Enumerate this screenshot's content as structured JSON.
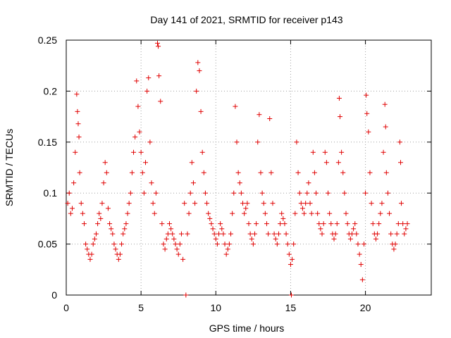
{
  "chart_data": {
    "type": "scatter",
    "title": "Day 141 of 2021, SRMTID for receiver p143",
    "xlabel": "GPS time / hours",
    "ylabel": "SRMTID / TECUs",
    "xlim": [
      0,
      24.4
    ],
    "ylim": [
      0,
      0.25
    ],
    "x_ticks": [
      0,
      5,
      10,
      15,
      20
    ],
    "x_tick_labels": [
      "0",
      "5",
      "10",
      "15",
      "20"
    ],
    "y_ticks": [
      0,
      0.05,
      0.1,
      0.15,
      0.2,
      0.25
    ],
    "y_tick_labels": [
      "0",
      "0.05",
      "0.1",
      "0.15",
      "0.2",
      "0.25"
    ],
    "grid": true,
    "marker": "+",
    "series": [
      {
        "name": "SRMTID",
        "color": "#e00000",
        "points": [
          [
            0.1,
            0.09
          ],
          [
            0.2,
            0.1
          ],
          [
            0.3,
            0.08
          ],
          [
            0.4,
            0.085
          ],
          [
            0.5,
            0.11
          ],
          [
            0.6,
            0.14
          ],
          [
            0.7,
            0.197
          ],
          [
            0.75,
            0.18
          ],
          [
            0.8,
            0.168
          ],
          [
            0.85,
            0.155
          ],
          [
            0.9,
            0.12
          ],
          [
            1.0,
            0.09
          ],
          [
            1.1,
            0.08
          ],
          [
            1.2,
            0.07
          ],
          [
            1.3,
            0.05
          ],
          [
            1.4,
            0.045
          ],
          [
            1.5,
            0.04
          ],
          [
            1.6,
            0.035
          ],
          [
            1.7,
            0.04
          ],
          [
            1.8,
            0.05
          ],
          [
            1.9,
            0.055
          ],
          [
            2.0,
            0.06
          ],
          [
            2.1,
            0.07
          ],
          [
            2.2,
            0.08
          ],
          [
            2.3,
            0.075
          ],
          [
            2.4,
            0.09
          ],
          [
            2.5,
            0.11
          ],
          [
            2.6,
            0.13
          ],
          [
            2.7,
            0.12
          ],
          [
            2.8,
            0.085
          ],
          [
            2.9,
            0.07
          ],
          [
            3.0,
            0.065
          ],
          [
            3.1,
            0.06
          ],
          [
            3.2,
            0.05
          ],
          [
            3.3,
            0.045
          ],
          [
            3.4,
            0.04
          ],
          [
            3.5,
            0.035
          ],
          [
            3.6,
            0.04
          ],
          [
            3.7,
            0.05
          ],
          [
            3.8,
            0.06
          ],
          [
            3.9,
            0.065
          ],
          [
            4.0,
            0.07
          ],
          [
            4.1,
            0.08
          ],
          [
            4.2,
            0.09
          ],
          [
            4.3,
            0.1
          ],
          [
            4.4,
            0.12
          ],
          [
            4.5,
            0.14
          ],
          [
            4.6,
            0.155
          ],
          [
            4.7,
            0.21
          ],
          [
            4.8,
            0.185
          ],
          [
            4.9,
            0.16
          ],
          [
            5.0,
            0.14
          ],
          [
            5.1,
            0.12
          ],
          [
            5.2,
            0.1
          ],
          [
            5.3,
            0.13
          ],
          [
            5.4,
            0.2
          ],
          [
            5.5,
            0.213
          ],
          [
            5.6,
            0.15
          ],
          [
            5.7,
            0.11
          ],
          [
            5.8,
            0.09
          ],
          [
            5.9,
            0.08
          ],
          [
            6.0,
            0.1
          ],
          [
            6.1,
            0.247
          ],
          [
            6.15,
            0.244
          ],
          [
            6.2,
            0.215
          ],
          [
            6.3,
            0.19
          ],
          [
            6.4,
            0.07
          ],
          [
            6.5,
            0.05
          ],
          [
            6.6,
            0.045
          ],
          [
            6.7,
            0.055
          ],
          [
            6.8,
            0.06
          ],
          [
            6.9,
            0.07
          ],
          [
            7.0,
            0.065
          ],
          [
            7.1,
            0.06
          ],
          [
            7.2,
            0.055
          ],
          [
            7.3,
            0.05
          ],
          [
            7.4,
            0.045
          ],
          [
            7.5,
            0.04
          ],
          [
            7.6,
            0.05
          ],
          [
            7.7,
            0.06
          ],
          [
            7.8,
            0.035
          ],
          [
            7.9,
            0.09
          ],
          [
            8.0,
            0.0
          ],
          [
            8.1,
            0.06
          ],
          [
            8.2,
            0.08
          ],
          [
            8.3,
            0.1
          ],
          [
            8.4,
            0.13
          ],
          [
            8.5,
            0.11
          ],
          [
            8.6,
            0.09
          ],
          [
            8.7,
            0.2
          ],
          [
            8.8,
            0.228
          ],
          [
            8.9,
            0.22
          ],
          [
            9.0,
            0.18
          ],
          [
            9.1,
            0.14
          ],
          [
            9.2,
            0.12
          ],
          [
            9.3,
            0.1
          ],
          [
            9.4,
            0.09
          ],
          [
            9.5,
            0.08
          ],
          [
            9.6,
            0.075
          ],
          [
            9.7,
            0.07
          ],
          [
            9.8,
            0.065
          ],
          [
            9.9,
            0.06
          ],
          [
            10.0,
            0.055
          ],
          [
            10.1,
            0.05
          ],
          [
            10.2,
            0.06
          ],
          [
            10.3,
            0.07
          ],
          [
            10.4,
            0.065
          ],
          [
            10.5,
            0.06
          ],
          [
            10.6,
            0.05
          ],
          [
            10.7,
            0.04
          ],
          [
            10.8,
            0.045
          ],
          [
            10.9,
            0.05
          ],
          [
            11.0,
            0.06
          ],
          [
            11.1,
            0.08
          ],
          [
            11.2,
            0.1
          ],
          [
            11.3,
            0.185
          ],
          [
            11.4,
            0.15
          ],
          [
            11.5,
            0.12
          ],
          [
            11.6,
            0.11
          ],
          [
            11.7,
            0.1
          ],
          [
            11.8,
            0.09
          ],
          [
            11.9,
            0.08
          ],
          [
            12.0,
            0.085
          ],
          [
            12.1,
            0.09
          ],
          [
            12.2,
            0.07
          ],
          [
            12.3,
            0.06
          ],
          [
            12.4,
            0.055
          ],
          [
            12.5,
            0.05
          ],
          [
            12.6,
            0.06
          ],
          [
            12.7,
            0.07
          ],
          [
            12.8,
            0.15
          ],
          [
            12.9,
            0.177
          ],
          [
            13.0,
            0.12
          ],
          [
            13.1,
            0.1
          ],
          [
            13.2,
            0.09
          ],
          [
            13.3,
            0.08
          ],
          [
            13.4,
            0.07
          ],
          [
            13.5,
            0.06
          ],
          [
            13.6,
            0.173
          ],
          [
            13.7,
            0.12
          ],
          [
            13.8,
            0.09
          ],
          [
            13.9,
            0.06
          ],
          [
            14.0,
            0.055
          ],
          [
            14.1,
            0.05
          ],
          [
            14.2,
            0.06
          ],
          [
            14.3,
            0.07
          ],
          [
            14.4,
            0.08
          ],
          [
            14.5,
            0.075
          ],
          [
            14.6,
            0.07
          ],
          [
            14.7,
            0.06
          ],
          [
            14.8,
            0.05
          ],
          [
            14.9,
            0.04
          ],
          [
            15.0,
            0.03
          ],
          [
            15.05,
            0.0
          ],
          [
            15.1,
            0.035
          ],
          [
            15.2,
            0.05
          ],
          [
            15.3,
            0.08
          ],
          [
            15.4,
            0.15
          ],
          [
            15.5,
            0.12
          ],
          [
            15.6,
            0.1
          ],
          [
            15.7,
            0.09
          ],
          [
            15.8,
            0.085
          ],
          [
            15.9,
            0.08
          ],
          [
            16.0,
            0.09
          ],
          [
            16.1,
            0.1
          ],
          [
            16.2,
            0.11
          ],
          [
            16.3,
            0.09
          ],
          [
            16.4,
            0.08
          ],
          [
            16.5,
            0.14
          ],
          [
            16.6,
            0.12
          ],
          [
            16.7,
            0.1
          ],
          [
            16.8,
            0.08
          ],
          [
            16.9,
            0.07
          ],
          [
            17.0,
            0.065
          ],
          [
            17.1,
            0.06
          ],
          [
            17.2,
            0.07
          ],
          [
            17.3,
            0.14
          ],
          [
            17.4,
            0.13
          ],
          [
            17.5,
            0.1
          ],
          [
            17.6,
            0.08
          ],
          [
            17.7,
            0.07
          ],
          [
            17.8,
            0.06
          ],
          [
            17.9,
            0.055
          ],
          [
            18.0,
            0.06
          ],
          [
            18.1,
            0.07
          ],
          [
            18.2,
            0.13
          ],
          [
            18.25,
            0.193
          ],
          [
            18.3,
            0.175
          ],
          [
            18.4,
            0.14
          ],
          [
            18.5,
            0.12
          ],
          [
            18.6,
            0.1
          ],
          [
            18.7,
            0.08
          ],
          [
            18.8,
            0.07
          ],
          [
            18.9,
            0.06
          ],
          [
            19.0,
            0.055
          ],
          [
            19.1,
            0.06
          ],
          [
            19.2,
            0.065
          ],
          [
            19.3,
            0.07
          ],
          [
            19.4,
            0.06
          ],
          [
            19.5,
            0.05
          ],
          [
            19.6,
            0.04
          ],
          [
            19.7,
            0.03
          ],
          [
            19.8,
            0.015
          ],
          [
            19.9,
            0.05
          ],
          [
            20.0,
            0.1
          ],
          [
            20.05,
            0.196
          ],
          [
            20.1,
            0.178
          ],
          [
            20.2,
            0.16
          ],
          [
            20.3,
            0.12
          ],
          [
            20.4,
            0.09
          ],
          [
            20.5,
            0.07
          ],
          [
            20.6,
            0.06
          ],
          [
            20.7,
            0.055
          ],
          [
            20.8,
            0.06
          ],
          [
            20.9,
            0.07
          ],
          [
            21.0,
            0.08
          ],
          [
            21.1,
            0.09
          ],
          [
            21.2,
            0.14
          ],
          [
            21.3,
            0.187
          ],
          [
            21.35,
            0.165
          ],
          [
            21.4,
            0.12
          ],
          [
            21.5,
            0.1
          ],
          [
            21.6,
            0.08
          ],
          [
            21.7,
            0.06
          ],
          [
            21.8,
            0.05
          ],
          [
            21.9,
            0.045
          ],
          [
            22.0,
            0.05
          ],
          [
            22.1,
            0.06
          ],
          [
            22.2,
            0.07
          ],
          [
            22.3,
            0.15
          ],
          [
            22.35,
            0.13
          ],
          [
            22.4,
            0.09
          ],
          [
            22.5,
            0.07
          ],
          [
            22.6,
            0.06
          ],
          [
            22.7,
            0.065
          ],
          [
            22.8,
            0.07
          ]
        ]
      }
    ]
  }
}
